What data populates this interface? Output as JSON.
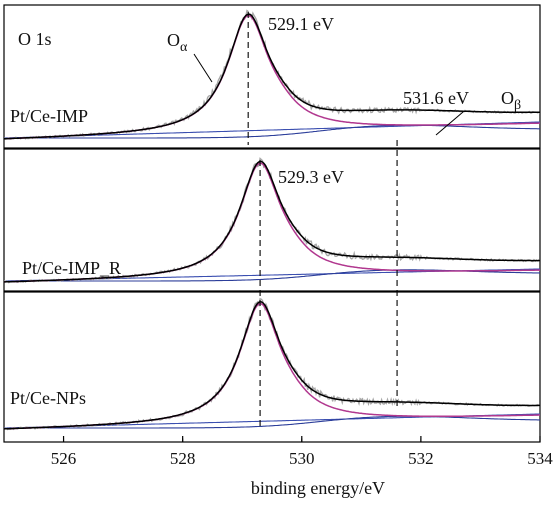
{
  "chart_data": {
    "type": "line",
    "title": "",
    "xlabel": "binding energy/eV",
    "ylabel": "",
    "xlim": [
      525,
      534
    ],
    "x_ticks": [
      526,
      528,
      530,
      532,
      534
    ],
    "x_tick_labels": [
      "526",
      "528",
      "530",
      "532",
      "534"
    ],
    "grid": false,
    "legend": "none",
    "colors": {
      "raw": "#a8a8a8",
      "envelope": "#000000",
      "o_alpha_component": "#b1388f",
      "o_beta_component": "#2c3e9a",
      "background": "#3b4fb0",
      "guide": "#000000"
    },
    "panels": [
      {
        "sample": "Pt/Ce-IMP",
        "panel_label": "O 1s",
        "o_alpha": {
          "label": "Oα",
          "peak_ev": 529.1,
          "peak_label": "529.1 eV"
        },
        "o_beta": {
          "label": "Oβ",
          "peak_ev": 531.6,
          "peak_label": "531.6 eV"
        },
        "series": [
          {
            "role": "raw data"
          },
          {
            "role": "fit envelope"
          },
          {
            "role": "O alpha component"
          },
          {
            "role": "O beta component"
          },
          {
            "role": "background"
          }
        ]
      },
      {
        "sample": "Pt/Ce-IMP_R",
        "o_alpha": {
          "peak_ev": 529.3,
          "peak_label": "529.3 eV"
        },
        "o_beta": {
          "peak_ev": 531.6
        },
        "series": [
          {
            "role": "raw data"
          },
          {
            "role": "fit envelope"
          },
          {
            "role": "O alpha component"
          },
          {
            "role": "O beta component"
          },
          {
            "role": "background"
          }
        ]
      },
      {
        "sample": "Pt/Ce-NPs",
        "o_alpha": {
          "peak_ev": 529.3
        },
        "o_beta": {
          "peak_ev": 531.6
        },
        "series": [
          {
            "role": "raw data"
          },
          {
            "role": "fit envelope"
          },
          {
            "role": "O alpha component"
          },
          {
            "role": "O beta component"
          },
          {
            "role": "background"
          }
        ]
      }
    ],
    "guide_lines_ev": [
      529.1,
      529.3,
      531.6
    ]
  }
}
